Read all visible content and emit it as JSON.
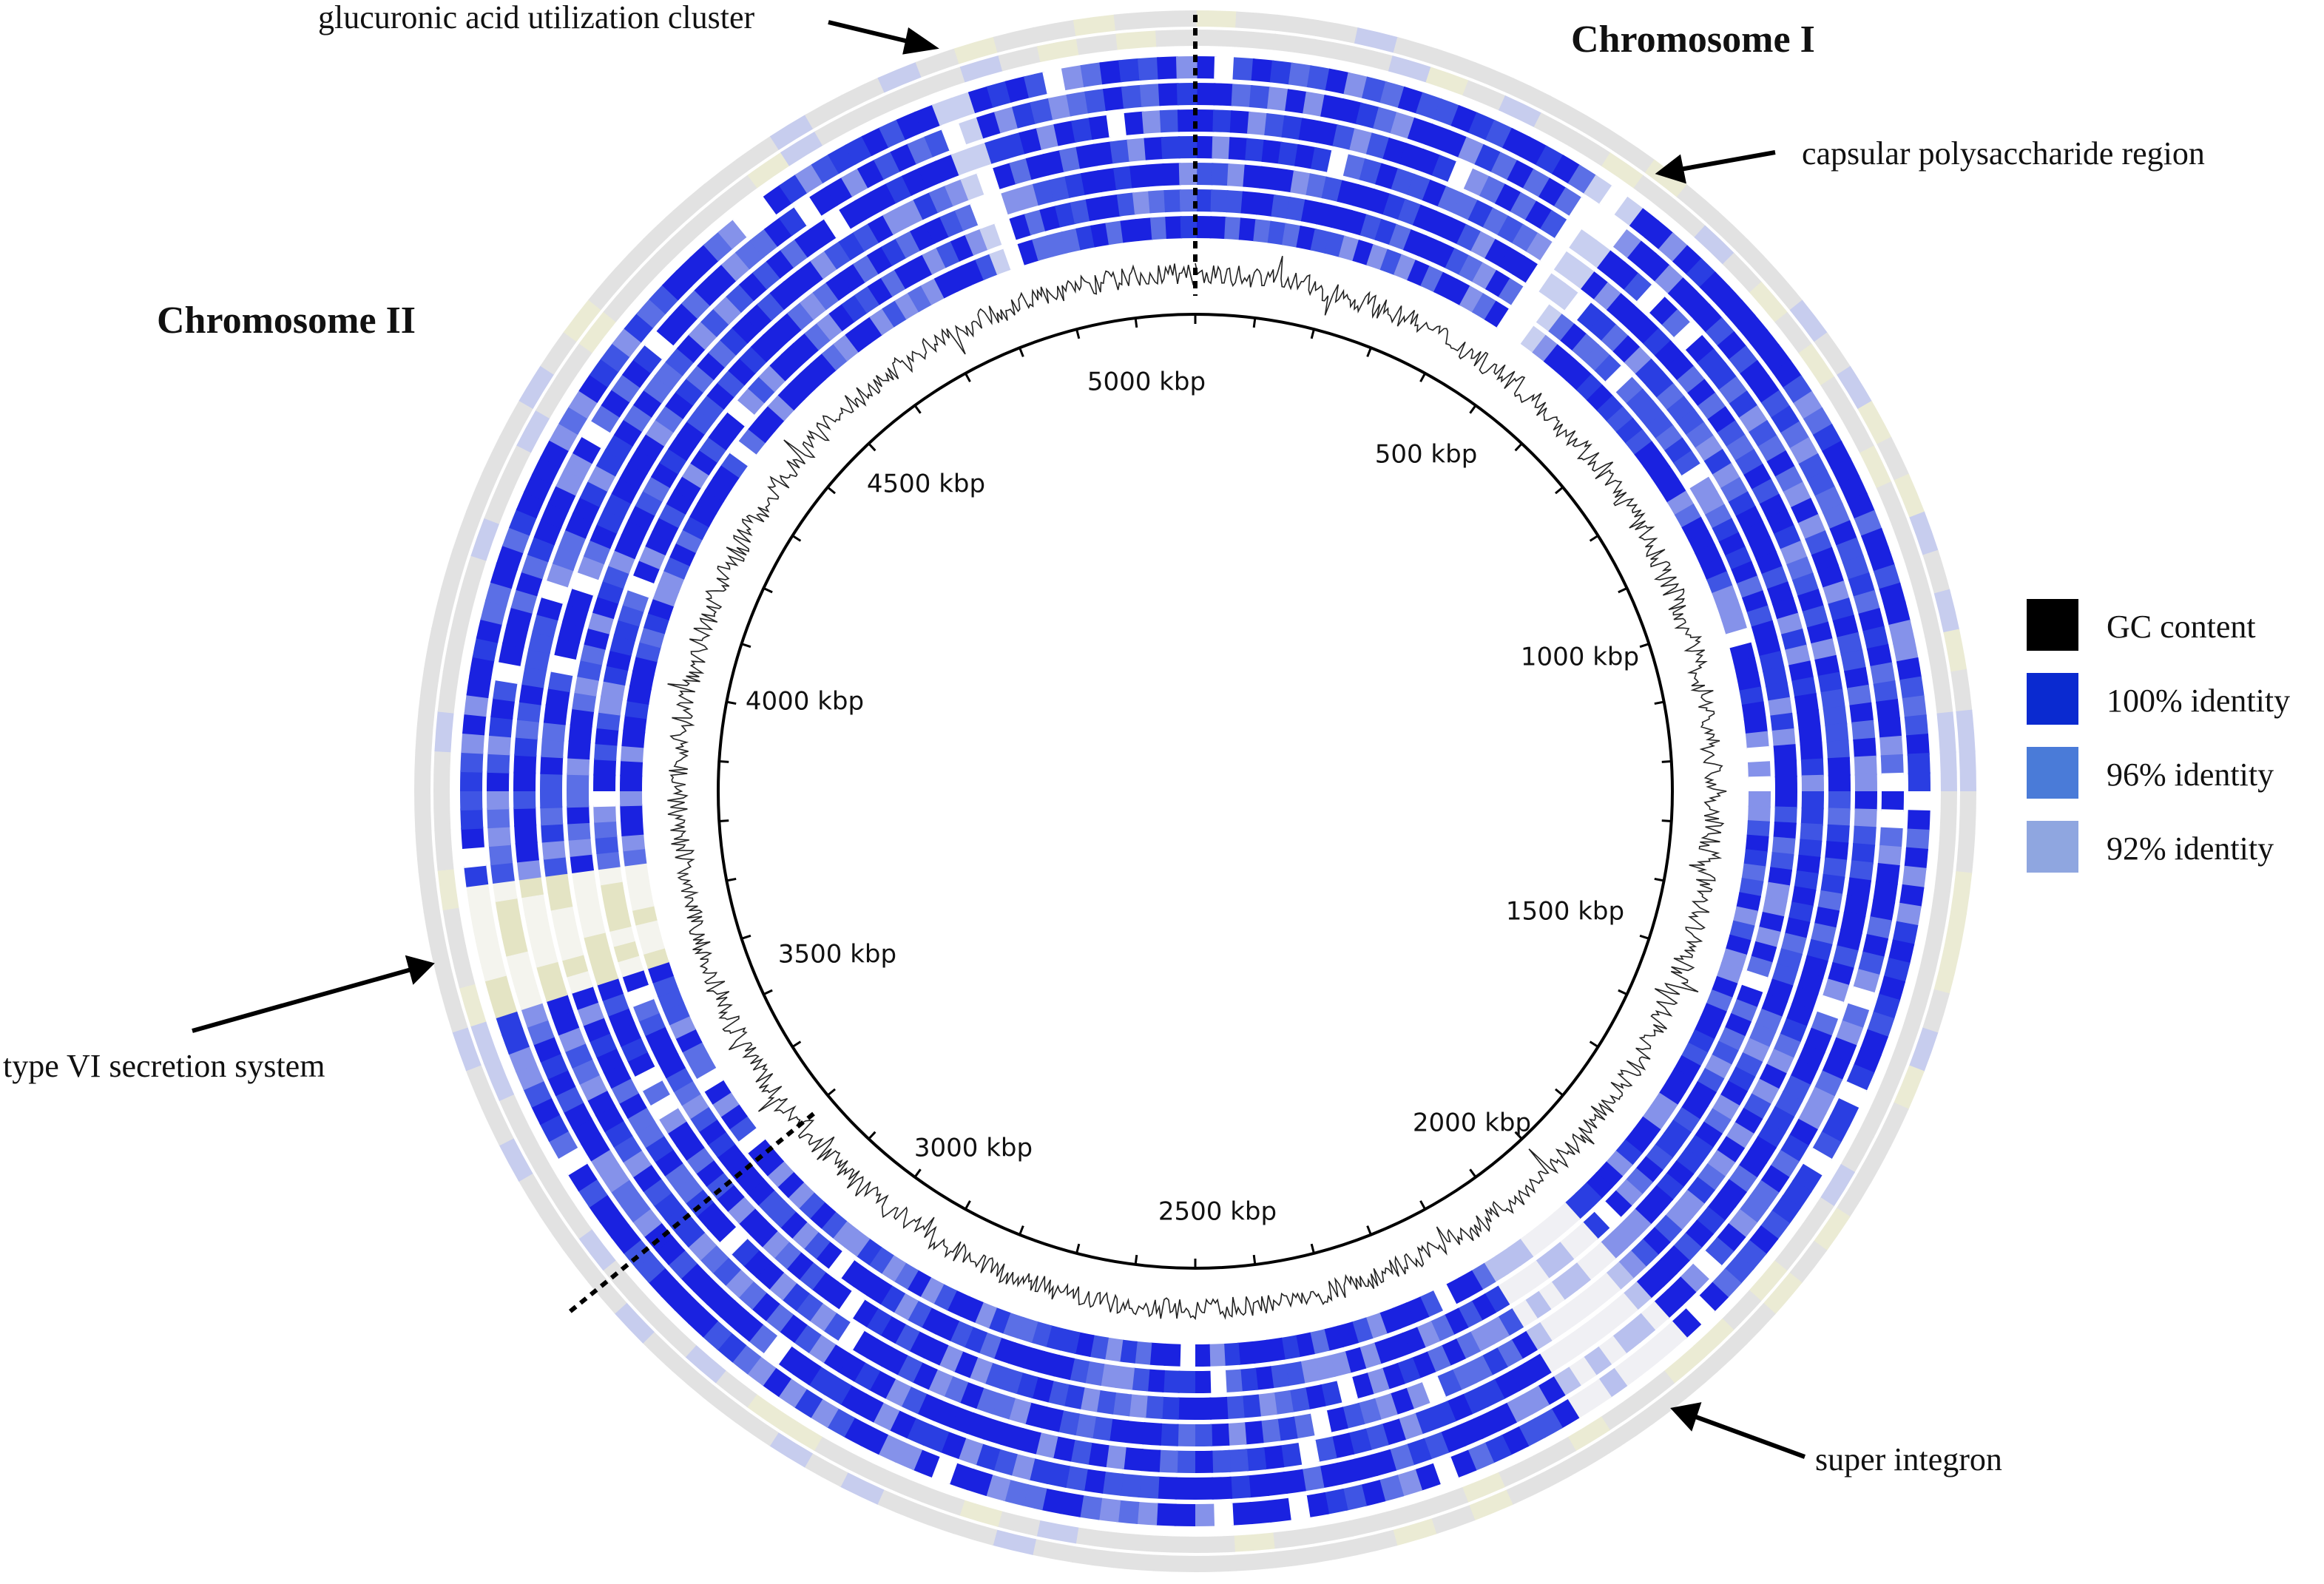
{
  "annotations": {
    "glucuronic": "glucuronic acid utilization cluster",
    "capsular": "capsular polysaccharide region",
    "type6": "type VI secretion system",
    "integron": "super integron"
  },
  "chromosomes": {
    "one": "Chromosome I",
    "two": "Chromosome II"
  },
  "ticks": [
    "5000 kbp",
    "500 kbp",
    "1000 kbp",
    "1500 kbp",
    "2000 kbp",
    "2500 kbp",
    "3000 kbp",
    "3500 kbp",
    "4000 kbp",
    "4500 kbp"
  ],
  "legend": [
    "GC content",
    "100% identity",
    "96% identity",
    "92% identity"
  ]
}
